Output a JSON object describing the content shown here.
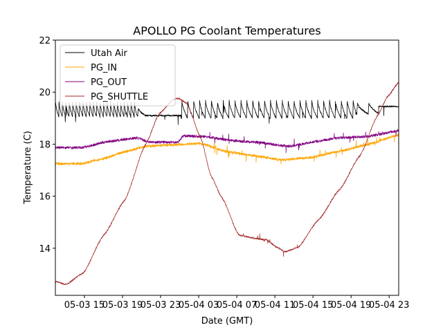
{
  "chart_data": {
    "type": "line",
    "title": "APOLLO PG Coolant Temperatures",
    "xlabel": "Date (GMT)",
    "ylabel": "Temperature (C)",
    "x_unit": "hours since 05-03 00:00 GMT",
    "xlim": [
      11.95,
      48.0
    ],
    "ylim": [
      12.19,
      22.0
    ],
    "grid": false,
    "legend_position": "top-left",
    "x_ticks": [
      {
        "value": 15,
        "label": "05-03 15"
      },
      {
        "value": 19,
        "label": "05-03 19"
      },
      {
        "value": 23,
        "label": "05-03 23"
      },
      {
        "value": 27,
        "label": "05-04 03"
      },
      {
        "value": 31,
        "label": "05-04 07"
      },
      {
        "value": 35,
        "label": "05-04 11"
      },
      {
        "value": 39,
        "label": "05-04 15"
      },
      {
        "value": 43,
        "label": "05-04 19"
      },
      {
        "value": 47,
        "label": "05-04 23"
      }
    ],
    "y_ticks": [
      {
        "value": 14,
        "label": "14"
      },
      {
        "value": 16,
        "label": "16"
      },
      {
        "value": 18,
        "label": "18"
      },
      {
        "value": 20,
        "label": "20"
      },
      {
        "value": 22,
        "label": "22"
      }
    ],
    "series": [
      {
        "name": "Utah Air",
        "color": "#000000",
        "style": "sawtooth",
        "segments": [
          {
            "x0": 11.95,
            "x1": 20.6,
            "low": 19.05,
            "high": 19.65,
            "period": 0.36
          },
          {
            "x0": 20.6,
            "x1": 21.4,
            "low": 19.1,
            "high": 19.4,
            "period": 0.8
          },
          {
            "x0": 21.4,
            "x1": 25.2,
            "low": 19.05,
            "high": 19.15,
            "period": 0
          },
          {
            "x0": 25.2,
            "x1": 43.6,
            "low": 19.0,
            "high": 19.7,
            "period": 0.62
          },
          {
            "x0": 43.6,
            "x1": 45.9,
            "low": 19.15,
            "high": 19.6,
            "period": 1.2
          },
          {
            "x0": 45.9,
            "x1": 48.0,
            "low": 19.35,
            "high": 19.55,
            "period": 0
          }
        ]
      },
      {
        "name": "PG_IN",
        "color": "#ffa500",
        "x": [
          11.95,
          14.7,
          16.9,
          19.8,
          21.3,
          24.2,
          27.1,
          30.0,
          32.9,
          35.8,
          38.7,
          41.6,
          44.5,
          48.0
        ],
        "y": [
          17.25,
          17.25,
          17.44,
          17.76,
          17.92,
          17.97,
          18.03,
          17.71,
          17.55,
          17.39,
          17.49,
          17.71,
          17.97,
          18.35
        ]
      },
      {
        "name": "PG_OUT",
        "color": "#800080",
        "x": [
          11.95,
          14.7,
          17.6,
          20.5,
          21.9,
          24.8,
          25.4,
          27.7,
          30.6,
          32.9,
          36.5,
          39.4,
          41.6,
          44.5,
          48.0
        ],
        "y": [
          17.87,
          17.87,
          18.11,
          18.24,
          18.08,
          18.08,
          18.32,
          18.29,
          18.13,
          18.08,
          17.92,
          18.11,
          18.24,
          18.29,
          18.51
        ]
      },
      {
        "name": "PG_SHUTTLE",
        "color": "#a52a2a",
        "x": [
          11.95,
          13.04,
          14.85,
          17.04,
          19.22,
          21.4,
          22.85,
          24.31,
          24.89,
          25.76,
          27.22,
          28.31,
          29.4,
          31.22,
          33.04,
          34.13,
          35.22,
          36.09,
          37.4,
          39.58,
          41.76,
          43.95,
          45.76,
          46.85,
          48.0
        ],
        "y": [
          12.72,
          12.61,
          13.04,
          14.51,
          15.84,
          17.97,
          19.17,
          19.71,
          19.76,
          19.57,
          18.24,
          16.77,
          15.97,
          14.51,
          14.37,
          14.32,
          14.03,
          13.87,
          14.03,
          15.09,
          16.24,
          17.57,
          19.09,
          19.84,
          20.37
        ]
      }
    ]
  }
}
